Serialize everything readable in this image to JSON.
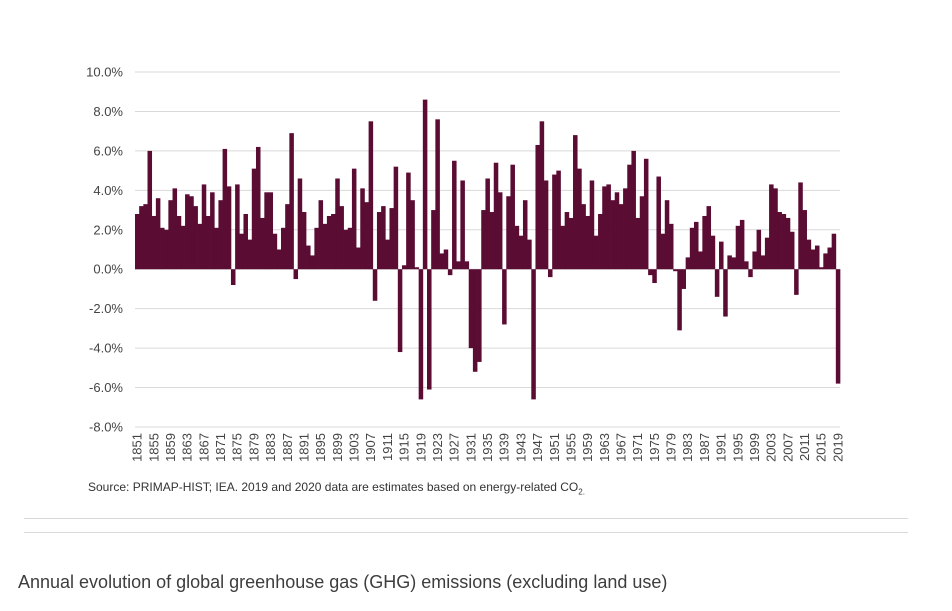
{
  "chart_data": {
    "type": "bar",
    "title": "",
    "xlabel": "",
    "ylabel": "",
    "ylim": [
      -8,
      10
    ],
    "yticks": [
      10,
      8,
      6,
      4,
      2,
      0,
      -2,
      -4,
      -6,
      -8
    ],
    "ytick_labels": [
      "10.0%",
      "8.0%",
      "6.0%",
      "4.0%",
      "2.0%",
      "0.0%",
      "-2.0%",
      "-4.0%",
      "-6.0%",
      "-8.0%"
    ],
    "xtick_labels": [
      "1851",
      "1855",
      "1859",
      "1863",
      "1867",
      "1871",
      "1875",
      "1879",
      "1883",
      "1887",
      "1891",
      "1895",
      "1899",
      "1903",
      "1907",
      "1911",
      "1915",
      "1919",
      "1923",
      "1927",
      "1931",
      "1935",
      "1939",
      "1943",
      "1947",
      "1951",
      "1955",
      "1959",
      "1963",
      "1967",
      "1971",
      "1975",
      "1979",
      "1983",
      "1987",
      "1991",
      "1995",
      "1999",
      "2003",
      "2007",
      "2011",
      "2015",
      "2019"
    ],
    "bar_color": "#5a0c33",
    "grid": true,
    "x_start": 1851,
    "x_end": 2020,
    "values": [
      2.8,
      3.2,
      3.3,
      6.0,
      2.7,
      3.6,
      2.1,
      2.0,
      3.5,
      4.1,
      2.7,
      2.2,
      3.8,
      3.7,
      3.2,
      2.3,
      4.3,
      2.7,
      3.9,
      2.1,
      3.5,
      6.1,
      4.2,
      -0.8,
      4.3,
      1.8,
      2.8,
      1.5,
      5.1,
      6.2,
      2.6,
      3.9,
      3.9,
      1.8,
      1.0,
      2.1,
      3.3,
      6.9,
      -0.5,
      4.6,
      2.9,
      1.2,
      0.7,
      2.1,
      3.5,
      2.3,
      2.7,
      2.8,
      4.6,
      3.2,
      2.0,
      2.1,
      5.1,
      1.1,
      4.1,
      3.4,
      7.5,
      -1.6,
      2.9,
      3.2,
      1.5,
      3.1,
      5.2,
      -4.2,
      0.2,
      4.9,
      3.5,
      0.1,
      -6.6,
      8.6,
      -6.1,
      3.0,
      7.6,
      0.8,
      1.0,
      -0.3,
      5.5,
      0.4,
      4.5,
      0.4,
      -4.0,
      -5.2,
      -4.7,
      3.0,
      4.6,
      2.9,
      5.4,
      3.9,
      -2.8,
      3.7,
      5.3,
      2.2,
      1.7,
      3.5,
      1.5,
      -6.6,
      6.3,
      7.5,
      4.5,
      -0.4,
      4.8,
      5.0,
      2.2,
      2.9,
      2.6,
      6.8,
      5.1,
      3.3,
      2.7,
      4.5,
      1.7,
      2.8,
      4.2,
      4.3,
      3.5,
      3.9,
      3.3,
      4.1,
      5.3,
      6.0,
      2.6,
      3.7,
      5.6,
      -0.3,
      -0.7,
      4.7,
      1.8,
      3.5,
      2.3,
      -0.1,
      -3.1,
      -1.0,
      0.6,
      2.1,
      2.4,
      0.9,
      2.7,
      3.2,
      1.7,
      -1.4,
      1.4,
      -2.4,
      0.7,
      0.6,
      2.2,
      2.5,
      0.4,
      -0.4,
      0.9,
      2.0,
      0.7,
      1.6,
      4.3,
      4.1,
      2.9,
      2.8,
      2.6,
      1.9,
      -1.3,
      4.4,
      3.0,
      1.5,
      1.0,
      1.2,
      0.1,
      0.8,
      1.1,
      1.8,
      -5.8
    ]
  },
  "source": {
    "text": "Source: PRIMAP-HIST; IEA. 2019 and 2020 data are estimates based on energy-related CO",
    "subscript": "2."
  },
  "caption": "Annual evolution of global greenhouse gas (GHG) emissions (excluding land use)"
}
